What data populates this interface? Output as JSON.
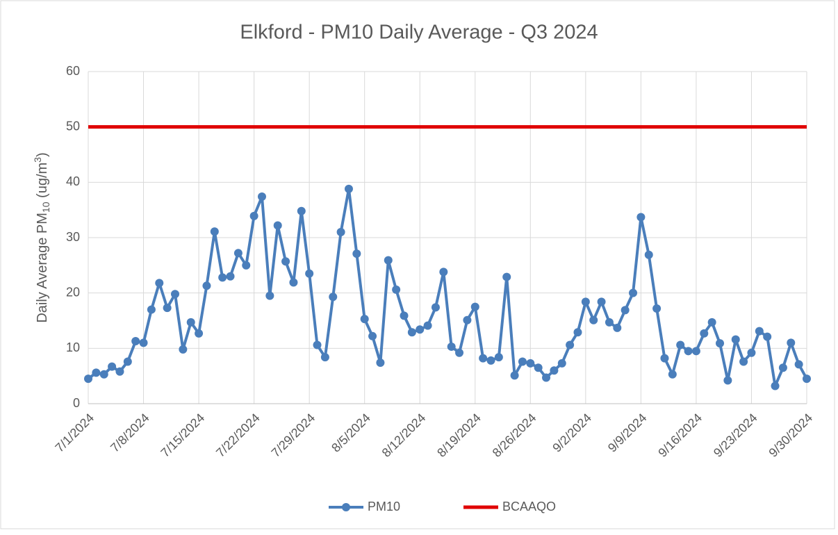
{
  "chart_data": {
    "type": "line",
    "title": "Elkford - PM10 Daily Average - Q3 2024",
    "y_label": {
      "text": "Daily Average PM",
      "sub": "10",
      "mid": " (ug/m",
      "sup": "3",
      "end": ")"
    },
    "categories": [
      "7/1/2024",
      null,
      null,
      null,
      null,
      null,
      null,
      "7/8/2024",
      null,
      null,
      null,
      null,
      null,
      null,
      "7/15/2024",
      null,
      null,
      null,
      null,
      null,
      null,
      "7/22/2024",
      null,
      null,
      null,
      null,
      null,
      null,
      "7/29/2024",
      null,
      null,
      null,
      null,
      null,
      null,
      "8/5/2024",
      null,
      null,
      null,
      null,
      null,
      null,
      "8/12/2024",
      null,
      null,
      null,
      null,
      null,
      null,
      "8/19/2024",
      null,
      null,
      null,
      null,
      null,
      null,
      "8/26/2024",
      null,
      null,
      null,
      null,
      null,
      null,
      "9/2/2024",
      null,
      null,
      null,
      null,
      null,
      null,
      "9/9/2024",
      null,
      null,
      null,
      null,
      null,
      null,
      "9/16/2024",
      null,
      null,
      null,
      null,
      null,
      null,
      "9/23/2024",
      null,
      null,
      null,
      null,
      null,
      null,
      "9/30/2024"
    ],
    "series": [
      {
        "name": "PM10",
        "color": "#4a7ebb",
        "marker": true,
        "values": [
          4.5,
          5.6,
          5.3,
          6.7,
          5.8,
          7.6,
          11.3,
          11.0,
          17.0,
          21.8,
          17.3,
          19.8,
          9.8,
          14.7,
          12.7,
          21.3,
          31.1,
          22.8,
          23.0,
          27.2,
          25.0,
          33.9,
          37.4,
          19.5,
          32.2,
          25.7,
          21.9,
          34.8,
          23.5,
          10.6,
          8.4,
          19.3,
          31.0,
          38.8,
          27.1,
          15.3,
          12.2,
          7.4,
          25.9,
          20.6,
          15.9,
          12.9,
          13.4,
          14.1,
          17.4,
          23.8,
          10.3,
          9.2,
          15.1,
          17.5,
          8.2,
          7.8,
          8.4,
          22.9,
          5.1,
          7.6,
          7.3,
          6.5,
          4.7,
          6.0,
          7.3,
          10.6,
          12.9,
          18.4,
          15.1,
          18.4,
          14.7,
          13.7,
          16.9,
          20.0,
          33.7,
          26.9,
          17.2,
          8.2,
          5.3,
          10.6,
          9.5,
          9.5,
          12.7,
          14.7,
          10.9,
          4.2,
          11.6,
          7.6,
          9.2,
          13.1,
          12.1,
          3.2,
          6.5,
          11.0,
          7.1,
          4.5
        ]
      },
      {
        "name": "BCAAQO",
        "color": "#e00000",
        "marker": false,
        "values": [
          50,
          50,
          50,
          50,
          50,
          50,
          50,
          50,
          50,
          50,
          50,
          50,
          50,
          50,
          50,
          50,
          50,
          50,
          50,
          50,
          50,
          50,
          50,
          50,
          50,
          50,
          50,
          50,
          50,
          50,
          50,
          50,
          50,
          50,
          50,
          50,
          50,
          50,
          50,
          50,
          50,
          50,
          50,
          50,
          50,
          50,
          50,
          50,
          50,
          50,
          50,
          50,
          50,
          50,
          50,
          50,
          50,
          50,
          50,
          50,
          50,
          50,
          50,
          50,
          50,
          50,
          50,
          50,
          50,
          50,
          50,
          50,
          50,
          50,
          50,
          50,
          50,
          50,
          50,
          50,
          50,
          50,
          50,
          50,
          50,
          50,
          50,
          50,
          50,
          50,
          50,
          50
        ]
      }
    ],
    "ylim": [
      0,
      60
    ],
    "yticks": [
      0,
      10,
      20,
      30,
      40,
      50,
      60
    ],
    "grid": true,
    "legend": "bottom"
  }
}
